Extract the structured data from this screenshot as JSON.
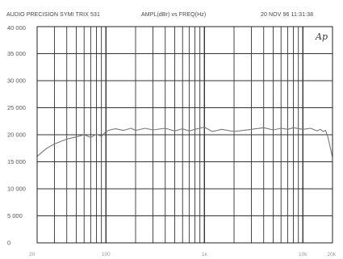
{
  "header": {
    "left": "AUDIO PRECISION SYMI TRIX 531",
    "middle": "AMPL(dBr)   vs   FREQ(Hz)",
    "right": "20 NOV 96  11:31:38"
  },
  "logo": "Ap",
  "chart_data": {
    "type": "line",
    "title": "",
    "xlabel": "FREQ(Hz)",
    "ylabel": "AMPL",
    "x_scale": "log",
    "xlim": [
      20,
      20000
    ],
    "ylim": [
      0,
      40000
    ],
    "grid": true,
    "y_ticks": [
      "40 000",
      "35 000",
      "30 000",
      "25 000",
      "20 000",
      "15 000",
      "10 000",
      "5 000",
      "0"
    ],
    "x_ticks": [
      {
        "value": 20,
        "label": "20"
      },
      {
        "value": 100,
        "label": "100"
      },
      {
        "value": 1000,
        "label": "1k"
      },
      {
        "value": 10000,
        "label": "10k"
      },
      {
        "value": 20000,
        "label": "20k"
      }
    ],
    "series": [
      {
        "color": "#777777",
        "x": [
          20,
          25,
          30,
          40,
          50,
          60,
          70,
          80,
          90,
          100,
          110,
          125,
          150,
          180,
          200,
          250,
          300,
          400,
          500,
          600,
          700,
          800,
          1000,
          1200,
          1500,
          2000,
          2500,
          3000,
          4000,
          5000,
          6000,
          7000,
          8000,
          10000,
          12000,
          14000,
          15000,
          16000,
          17000,
          18000,
          20000
        ],
        "y": [
          16000,
          17500,
          18300,
          19200,
          19600,
          20000,
          19500,
          20100,
          19700,
          20600,
          20900,
          21100,
          20800,
          21200,
          20800,
          21200,
          20900,
          21200,
          20700,
          21100,
          20700,
          21000,
          21400,
          20600,
          21000,
          20600,
          20800,
          21000,
          21300,
          20900,
          21200,
          21000,
          21300,
          21000,
          21200,
          20700,
          21000,
          20600,
          20800,
          19500,
          15800
        ]
      }
    ]
  }
}
